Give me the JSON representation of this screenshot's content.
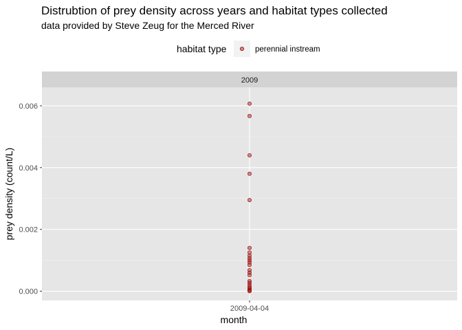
{
  "chart_data": {
    "type": "scatter",
    "title": "Distrubtion of prey density across years and habitat types collected",
    "subtitle": "data provided by Steve Zeug for the Merced River",
    "xlabel": "month",
    "ylabel": "prey density (count/L)",
    "facet": "2009",
    "x_categories": [
      "2009-04-04"
    ],
    "ylim": [
      -0.0003,
      0.0066
    ],
    "y_ticks": [
      {
        "value": 0.0,
        "label": "0.000"
      },
      {
        "value": 0.002,
        "label": "0.002"
      },
      {
        "value": 0.004,
        "label": "0.004"
      },
      {
        "value": 0.006,
        "label": "0.006"
      }
    ],
    "grid": true,
    "legend": {
      "title": "habitat type",
      "position": "top",
      "entries": [
        {
          "label": "perennial instream",
          "color": "#B22222"
        }
      ]
    },
    "series": [
      {
        "name": "perennial instream",
        "color": "#B22222",
        "points": [
          {
            "x": "2009-04-04",
            "y": 0.00607
          },
          {
            "x": "2009-04-04",
            "y": 0.00567
          },
          {
            "x": "2009-04-04",
            "y": 0.0044
          },
          {
            "x": "2009-04-04",
            "y": 0.0038
          },
          {
            "x": "2009-04-04",
            "y": 0.00295
          },
          {
            "x": "2009-04-04",
            "y": 0.0014
          },
          {
            "x": "2009-04-04",
            "y": 0.00125
          },
          {
            "x": "2009-04-04",
            "y": 0.00115
          },
          {
            "x": "2009-04-04",
            "y": 0.00107
          },
          {
            "x": "2009-04-04",
            "y": 0.001
          },
          {
            "x": "2009-04-04",
            "y": 0.00093
          },
          {
            "x": "2009-04-04",
            "y": 0.00085
          },
          {
            "x": "2009-04-04",
            "y": 0.00068
          },
          {
            "x": "2009-04-04",
            "y": 0.0006
          },
          {
            "x": "2009-04-04",
            "y": 0.00052
          },
          {
            "x": "2009-04-04",
            "y": 0.00033
          },
          {
            "x": "2009-04-04",
            "y": 0.00027
          },
          {
            "x": "2009-04-04",
            "y": 0.0002
          },
          {
            "x": "2009-04-04",
            "y": 0.00014
          },
          {
            "x": "2009-04-04",
            "y": 9e-05
          },
          {
            "x": "2009-04-04",
            "y": 5e-05
          },
          {
            "x": "2009-04-04",
            "y": 2e-05
          },
          {
            "x": "2009-04-04",
            "y": 0.0
          }
        ]
      }
    ],
    "colors": {
      "panel_background": "#E6E6E6",
      "strip_background": "#D3D3D3",
      "grid_major": "#FFFFFF",
      "grid_minor": "#F2F2F2",
      "point_fill": "#B22222",
      "point_stroke": "#8B0000"
    }
  }
}
